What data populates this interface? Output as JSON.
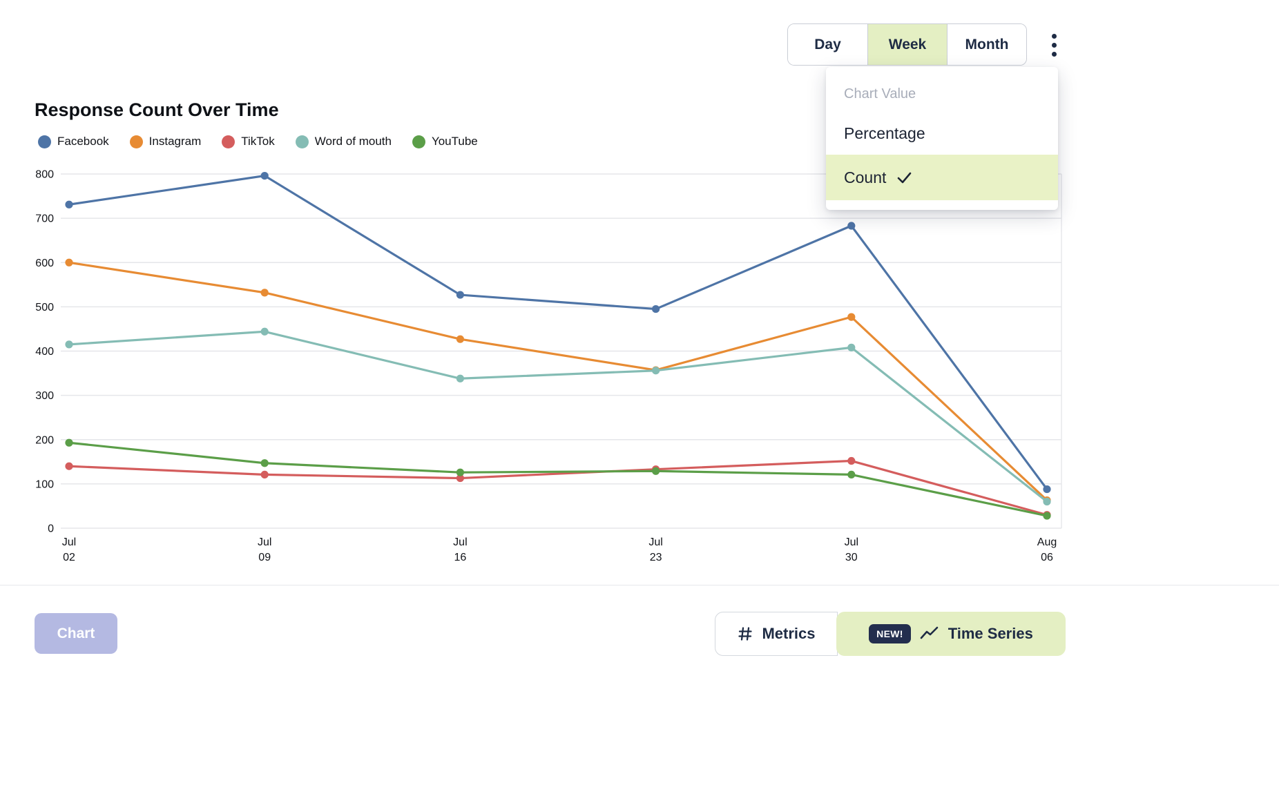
{
  "header": {
    "time_toggle": {
      "options": [
        "Day",
        "Week",
        "Month"
      ],
      "selected": "Week"
    }
  },
  "dropdown": {
    "title": "Chart Value",
    "options": [
      {
        "label": "Percentage",
        "selected": false
      },
      {
        "label": "Count",
        "selected": true
      }
    ]
  },
  "chart_data": {
    "type": "line",
    "title": "Response Count Over Time",
    "x": [
      "Jul 02",
      "Jul 09",
      "Jul 16",
      "Jul 23",
      "Jul 30",
      "Aug 06"
    ],
    "ylim": [
      0,
      800
    ],
    "ytick_step": 100,
    "grid": true,
    "legend_position": "top-left",
    "series": [
      {
        "name": "Facebook",
        "color": "#4e74a6",
        "values": [
          731,
          796,
          527,
          495,
          683,
          88
        ]
      },
      {
        "name": "Instagram",
        "color": "#e78b33",
        "values": [
          600,
          532,
          427,
          357,
          477,
          63
        ]
      },
      {
        "name": "TikTok",
        "color": "#d45d5d",
        "values": [
          140,
          121,
          113,
          133,
          152,
          30
        ]
      },
      {
        "name": "Word of mouth",
        "color": "#84bcb4",
        "values": [
          415,
          444,
          338,
          356,
          408,
          60
        ]
      },
      {
        "name": "YouTube",
        "color": "#5b9e48",
        "values": [
          193,
          147,
          126,
          129,
          121,
          28
        ]
      }
    ]
  },
  "colors": {
    "selected_segment_bg": "#e4efc3",
    "selected_menu_bg": "#e9f2c6",
    "chart_button_bg": "#b4b9e2",
    "new_badge_bg": "#232e4e",
    "grid_line": "#e5e6ea"
  },
  "footer": {
    "chart_button_label": "Chart",
    "metrics_button_label": "Metrics",
    "time_series_button_label": "Time Series",
    "new_badge_label": "NEW!"
  }
}
